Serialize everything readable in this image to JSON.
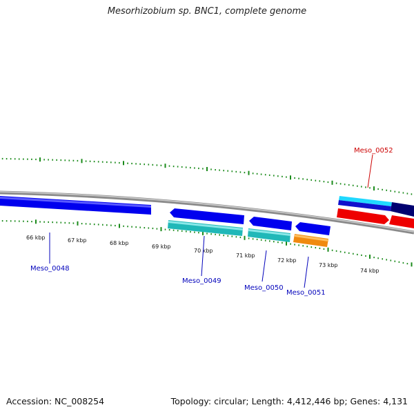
{
  "header": {
    "title": "Mesorhizobium sp. BNC1, complete genome"
  },
  "footer": {
    "accession": "Accession: NC_008254",
    "summary": "Topology: circular; Length: 4,412,446 bp; Genes: 4,131"
  },
  "colors": {
    "backbone": "#8a8a8a",
    "ticks": "#1a8a1a",
    "label_blue": "#0000bb",
    "label_red": "#cc0000"
  },
  "ruler": {
    "ticks": [
      {
        "label": "66 kbp"
      },
      {
        "label": "67 kbp"
      },
      {
        "label": "68 kbp"
      },
      {
        "label": "69 kbp"
      },
      {
        "label": "70 kbp"
      },
      {
        "label": "71 kbp"
      },
      {
        "label": "72 kbp"
      },
      {
        "label": "73 kbp"
      },
      {
        "label": "74 kbp"
      }
    ]
  },
  "genes": [
    {
      "name": "Meso_0048",
      "color": "#0000ee"
    },
    {
      "name": "Meso_0049",
      "color": "#0000ee"
    },
    {
      "name": "Meso_0050",
      "color": "#0000ee"
    },
    {
      "name": "Meso_0051",
      "color": "#0000ee"
    },
    {
      "name": "Meso_0052",
      "color": "#ee0000"
    }
  ]
}
